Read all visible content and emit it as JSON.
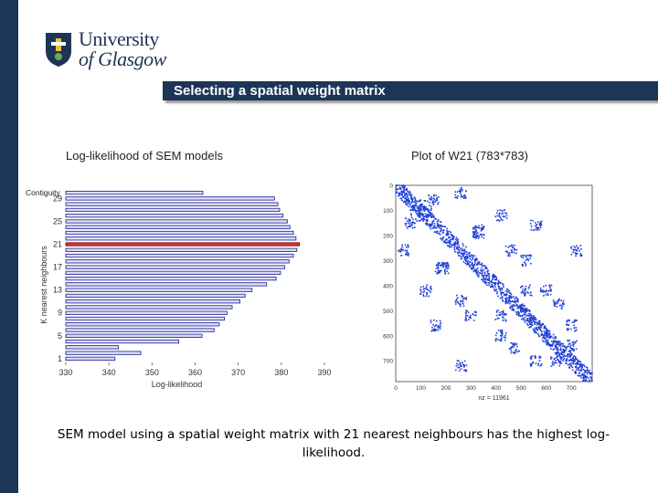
{
  "header": {
    "logo_line1": "University",
    "logo_line2": "of Glasgow",
    "slide_title": "Selecting a spatial weight matrix"
  },
  "colors": {
    "brand": "#1d3557",
    "bar_fill": "#d9dcef",
    "bar_edge": "#1a1a99",
    "highlight_fill": "#d33",
    "highlight_edge": "#6b1010",
    "nz_dot": "#1f3fd8"
  },
  "left_panel": {
    "title": "Log-likelihood of SEM models"
  },
  "right_panel": {
    "title": "Plot of W21 (783*783)"
  },
  "caption": "SEM model using a spatial weight matrix with 21 nearest neighbours has the highest log-likelihood.",
  "chart_data": [
    {
      "type": "bar",
      "orientation": "horizontal",
      "xlabel": "Log-likelihood",
      "ylabel": "K nearest neighbours",
      "xlim": [
        330,
        390
      ],
      "x_ticks": [
        330,
        340,
        350,
        360,
        370,
        380,
        390
      ],
      "y_ticks": [
        "1",
        "5",
        "9",
        "13",
        "17",
        "21",
        "25",
        "29"
      ],
      "y_top_label": "Contiguity",
      "categories": [
        "Contiguity",
        "29",
        "28",
        "27",
        "26",
        "25",
        "24",
        "23",
        "22",
        "21",
        "20",
        "19",
        "18",
        "17",
        "16",
        "15",
        "14",
        "13",
        "12",
        "11",
        "10",
        "9",
        "8",
        "7",
        "6",
        "5",
        "4",
        "3",
        "2",
        "1"
      ],
      "values": [
        361.8,
        378.4,
        379.2,
        379.6,
        380.4,
        381.4,
        382.0,
        382.8,
        383.4,
        384.2,
        383.6,
        382.8,
        381.8,
        380.8,
        379.8,
        378.8,
        376.6,
        373.2,
        371.6,
        370.4,
        368.6,
        367.4,
        366.8,
        365.6,
        364.4,
        361.6,
        356.2,
        342.2,
        347.4,
        341.4
      ],
      "highlight": "21"
    },
    {
      "type": "scatter",
      "title": "Plot of W21 (783*783)",
      "xlabel": "nz = 11961",
      "x_ticks": [
        0,
        100,
        200,
        300,
        400,
        500,
        600,
        700
      ],
      "y_ticks": [
        0,
        100,
        200,
        300,
        400,
        500,
        600,
        700
      ],
      "xlim": [
        0,
        783
      ],
      "ylim": [
        0,
        783
      ],
      "y_inverted": true
    }
  ]
}
